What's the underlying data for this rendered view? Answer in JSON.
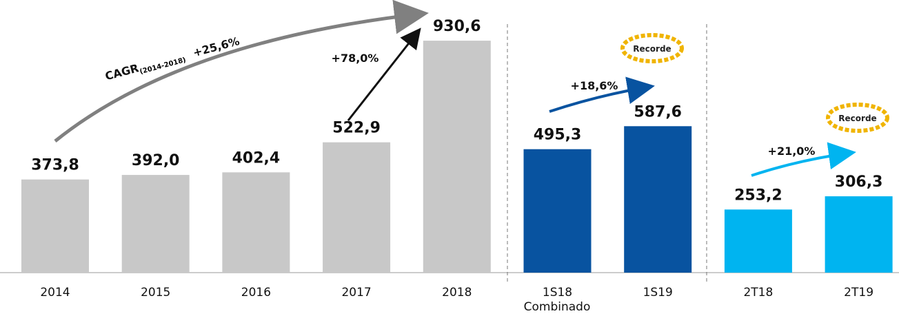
{
  "chart_data": {
    "type": "bar",
    "categories": [
      "2014",
      "2015",
      "2016",
      "2017",
      "2018",
      "1S18",
      "1S19",
      "2T18",
      "2T19"
    ],
    "category_note": "Combinado",
    "values": [
      373.8,
      392.0,
      402.4,
      522.9,
      930.6,
      495.3,
      587.6,
      253.2,
      306.3
    ],
    "value_labels": [
      "373,8",
      "392,0",
      "402,4",
      "522,9",
      "930,6",
      "495,3",
      "587,6",
      "253,2",
      "306,3"
    ],
    "colors": [
      "#c8c8c8",
      "#c8c8c8",
      "#c8c8c8",
      "#c8c8c8",
      "#c8c8c8",
      "#0853a0",
      "#0853a0",
      "#00b4f0",
      "#00b4f0"
    ],
    "ylim": [
      0,
      1000
    ],
    "annotations": [
      "CAGR",
      "(2014-2018)",
      "+25,6%",
      "+78,0%",
      "+18,6%",
      "+21,0%"
    ],
    "badges": [
      "Recorde",
      "Recorde"
    ]
  }
}
